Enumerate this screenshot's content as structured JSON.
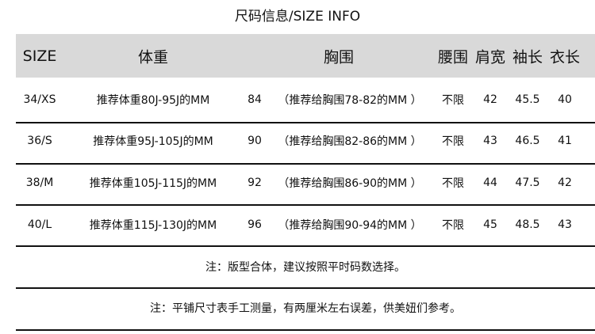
{
  "title": "尺码信息/SIZE INFO",
  "headers": {
    "size": "SIZE",
    "weight": "体重",
    "bust": "胸围",
    "waist": "腰围",
    "shoulder": "肩宽",
    "sleeve": "袖长",
    "length": "衣长"
  },
  "rows": [
    {
      "size": "34/XS",
      "weight": "推荐体重80J-95J的MM",
      "bust": "84",
      "bust_note": "（推荐给胸围78-82的MM ）",
      "waist": "不限",
      "shoulder": "42",
      "sleeve": "45.5",
      "length": "40"
    },
    {
      "size": "36/S",
      "weight": "推荐体重95J-105J的MM",
      "bust": "90",
      "bust_note": "（推荐给胸围82-86的MM ）",
      "waist": "不限",
      "shoulder": "43",
      "sleeve": "46.5",
      "length": "41"
    },
    {
      "size": "38/M",
      "weight": "推荐体重105J-115J的MM",
      "bust": "92",
      "bust_note": "（推荐给胸围86-90的MM ）",
      "waist": "不限",
      "shoulder": "44",
      "sleeve": "47.5",
      "length": "42"
    },
    {
      "size": "40/L",
      "weight": "推荐体重115J-130J的MM",
      "bust": "96",
      "bust_note": "（推荐给胸围90-94的MM ）",
      "waist": "不限",
      "shoulder": "45",
      "sleeve": "48.5",
      "length": "43"
    }
  ],
  "notes": [
    "注：版型合体，建议按照平时码数选择。",
    "注：平铺尺寸表手工测量，有两厘米左右误差，供美妞们参考。"
  ]
}
